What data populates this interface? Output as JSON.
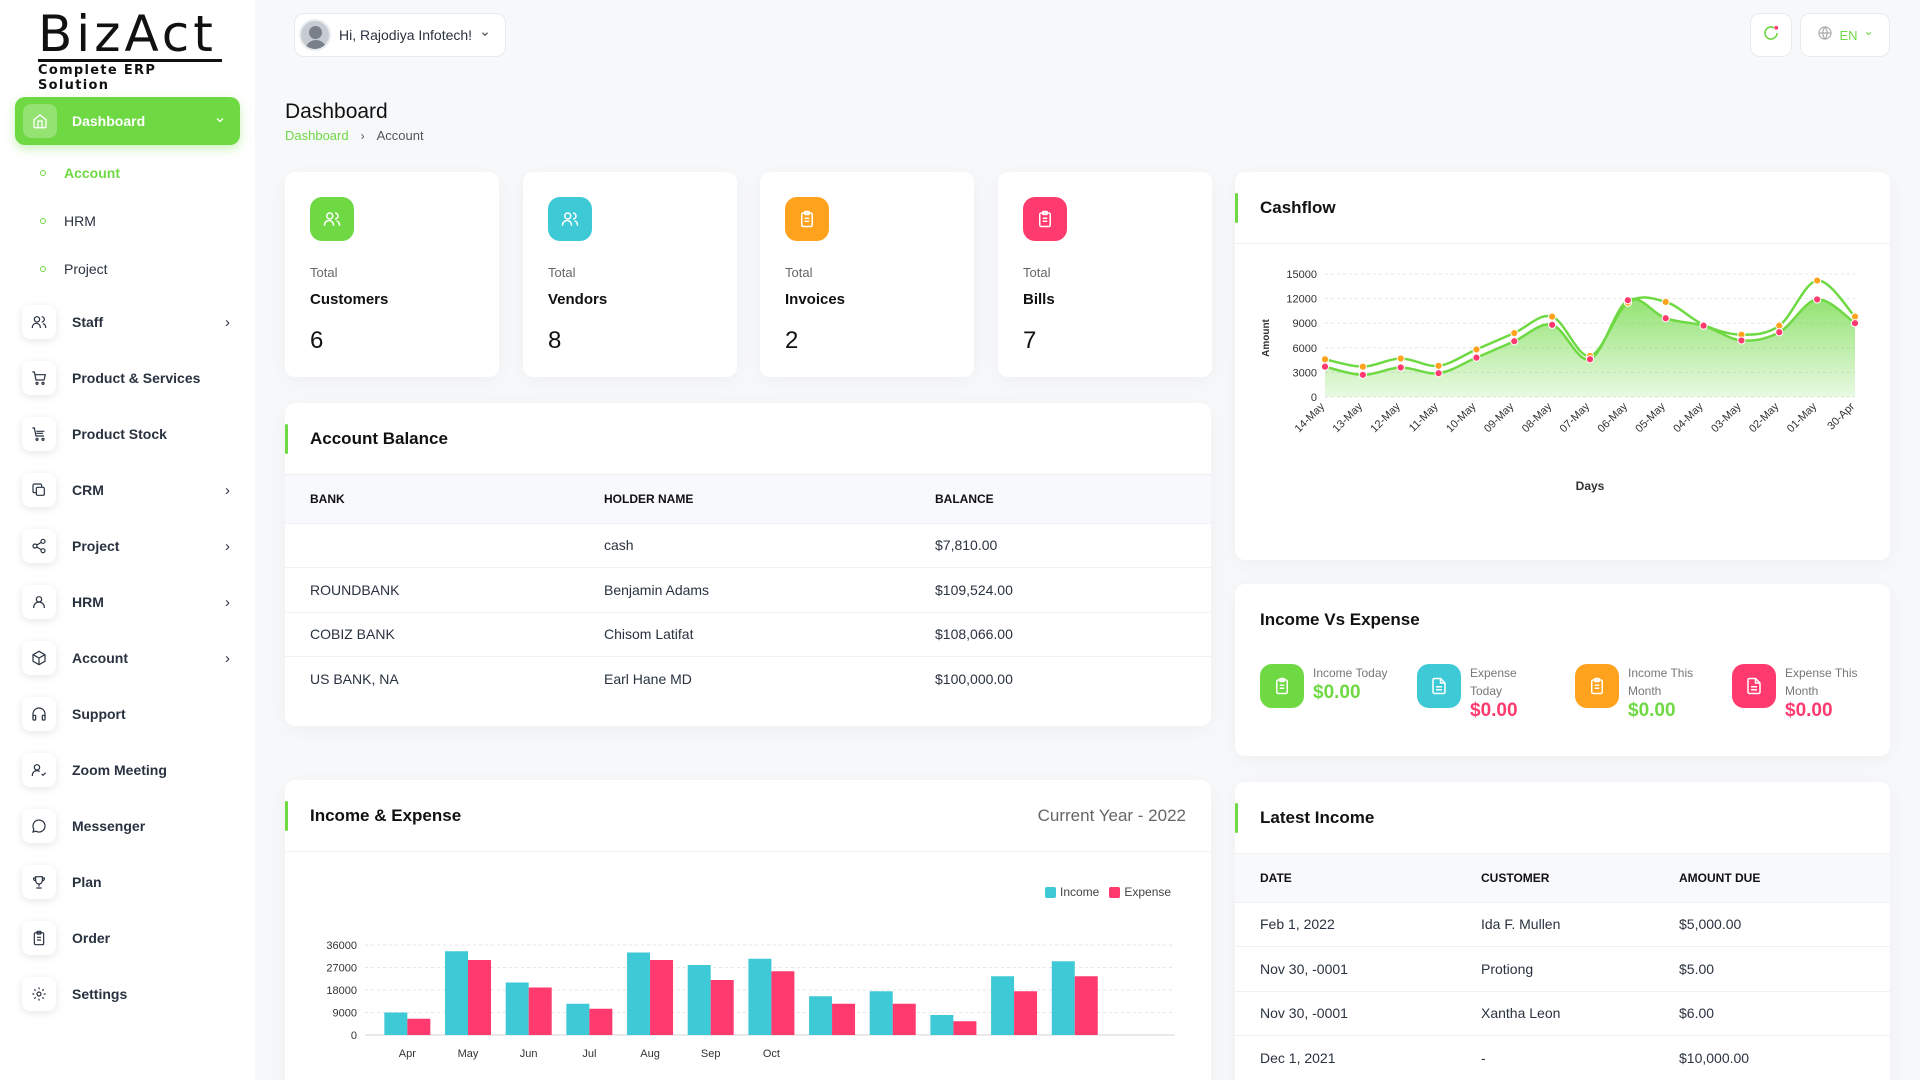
{
  "brand": {
    "name": "BizAct",
    "tagline": "Complete ERP Solution"
  },
  "sidebar": {
    "active": {
      "label": "Dashboard"
    },
    "subitems": [
      {
        "label": "Account",
        "active": true
      },
      {
        "label": "HRM",
        "active": false
      },
      {
        "label": "Project",
        "active": false
      }
    ],
    "items": [
      {
        "label": "Staff",
        "icon": "users-icon",
        "chevron": true
      },
      {
        "label": "Product & Services",
        "icon": "cart-icon",
        "chevron": false
      },
      {
        "label": "Product Stock",
        "icon": "stock-cart-icon",
        "chevron": false
      },
      {
        "label": "CRM",
        "icon": "layers-icon",
        "chevron": true
      },
      {
        "label": "Project",
        "icon": "share-icon",
        "chevron": true
      },
      {
        "label": "HRM",
        "icon": "user-icon",
        "chevron": true
      },
      {
        "label": "Account",
        "icon": "box-icon",
        "chevron": true
      },
      {
        "label": "Support",
        "icon": "headphones-icon",
        "chevron": false
      },
      {
        "label": "Zoom Meeting",
        "icon": "user-check-icon",
        "chevron": false
      },
      {
        "label": "Messenger",
        "icon": "message-icon",
        "chevron": false
      },
      {
        "label": "Plan",
        "icon": "trophy-icon",
        "chevron": false
      },
      {
        "label": "Order",
        "icon": "clipboard-icon",
        "chevron": false
      },
      {
        "label": "Settings",
        "icon": "gear-icon",
        "chevron": false
      }
    ]
  },
  "header": {
    "greeting": "Hi, Rajodiya Infotech!",
    "language": "EN"
  },
  "page": {
    "title": "Dashboard",
    "breadcrumb": [
      "Dashboard",
      "Account"
    ]
  },
  "stats": [
    {
      "small": "Total",
      "name": "Customers",
      "value": "6",
      "color": "#6fd943",
      "icon": "users-icon"
    },
    {
      "small": "Total",
      "name": "Vendors",
      "value": "8",
      "color": "#3ec9d6",
      "icon": "users-icon"
    },
    {
      "small": "Total",
      "name": "Invoices",
      "value": "2",
      "color": "#ffa21d",
      "icon": "clipboard-icon"
    },
    {
      "small": "Total",
      "name": "Bills",
      "value": "7",
      "color": "#ff3a6e",
      "icon": "clipboard-icon"
    }
  ],
  "account_balance": {
    "title": "Account Balance",
    "columns": [
      "BANK",
      "HOLDER NAME",
      "BALANCE"
    ],
    "rows": [
      [
        "",
        "cash",
        "$7,810.00"
      ],
      [
        "ROUNDBANK",
        "Benjamin Adams",
        "$109,524.00"
      ],
      [
        "COBIZ BANK",
        "Chisom Latifat",
        "$108,066.00"
      ],
      [
        "US BANK, NA",
        "Earl Hane MD",
        "$100,000.00"
      ]
    ]
  },
  "income_expense_card": {
    "title": "Income & Expense",
    "year_label": "Current Year - 2022"
  },
  "cashflow_card": {
    "title": "Cashflow"
  },
  "income_vs_expense": {
    "title": "Income Vs Expense",
    "items": [
      {
        "label": "Income Today",
        "value": "$0.00",
        "color": "#6fd943",
        "icon": "clipboard-icon"
      },
      {
        "label": "Expense Today",
        "value": "$0.00",
        "color": "#3ec9d6",
        "value_color": "#ff3a6e",
        "icon": "file-icon"
      },
      {
        "label": "Income This Month",
        "value": "$0.00",
        "color": "#ffa21d",
        "value_color": "#6fd943",
        "icon": "clipboard-icon"
      },
      {
        "label": "Expense This Month",
        "value": "$0.00",
        "color": "#ff3a6e",
        "value_color": "#ff3a6e",
        "icon": "file-icon"
      }
    ]
  },
  "latest_income": {
    "title": "Latest Income",
    "columns": [
      "DATE",
      "CUSTOMER",
      "AMOUNT DUE"
    ],
    "rows": [
      [
        "Feb 1, 2022",
        "Ida F. Mullen",
        "$5,000.00"
      ],
      [
        "Nov 30, -0001",
        "Protiong",
        "$5.00"
      ],
      [
        "Nov 30, -0001",
        "Xantha Leon",
        "$6.00"
      ],
      [
        "Dec 1, 2021",
        "-",
        "$10,000.00"
      ]
    ]
  },
  "chart_data": [
    {
      "type": "area",
      "xlabel": "Days",
      "ylabel": "Amount",
      "categories": [
        "14-May",
        "13-May",
        "12-May",
        "11-May",
        "10-May",
        "09-May",
        "08-May",
        "07-May",
        "06-May",
        "05-May",
        "04-May",
        "03-May",
        "02-May",
        "01-May",
        "30-Apr"
      ],
      "series": [
        {
          "values": [
            4600,
            3700,
            4700,
            3800,
            5800,
            7800,
            9800,
            5000,
            11500,
            11600,
            8800,
            7600,
            8700,
            14200,
            9800
          ]
        },
        {
          "values": [
            3700,
            2700,
            3600,
            2900,
            4800,
            6800,
            8800,
            4600,
            11800,
            9600,
            8700,
            6900,
            7900,
            11900,
            9000
          ]
        }
      ],
      "ylim": [
        0,
        15000
      ],
      "yticks": [
        0,
        3000,
        6000,
        9000,
        12000,
        15000
      ],
      "grid": true,
      "colors": {
        "line": "#6fd943",
        "upper_point": "#ffa21d",
        "lower_point": "#ff3a6e"
      }
    },
    {
      "type": "bar",
      "categories": [
        "Apr",
        "May",
        "Jun",
        "Jul",
        "Aug",
        "Sep",
        "Oct",
        "",
        "",
        "",
        "",
        "",
        ""
      ],
      "series": [
        {
          "name": "Income",
          "values": [
            9000,
            33500,
            21000,
            12500,
            33000,
            28000,
            30500,
            15500,
            17500,
            8000,
            23500,
            29500,
            0
          ]
        },
        {
          "name": "Expense",
          "values": [
            6500,
            30000,
            19000,
            10500,
            30000,
            22000,
            25500,
            12500,
            12500,
            5500,
            17500,
            23500,
            0
          ]
        }
      ],
      "ylim": [
        0,
        36000
      ],
      "yticks": [
        0,
        9000,
        18000,
        27000,
        36000
      ],
      "legend": "top-right",
      "grid": true,
      "colors": {
        "Income": "#3ec9d6",
        "Expense": "#ff3a6e"
      }
    }
  ]
}
